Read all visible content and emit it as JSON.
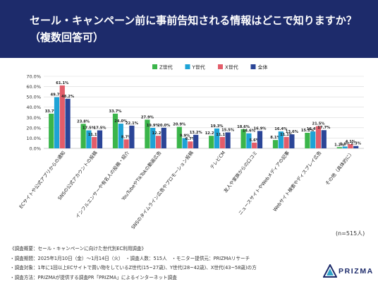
{
  "header": {
    "title_line1": "セール・キャンペーン前に事前告知される情報はどこで知りますか？",
    "title_line2": "（複数回答可）"
  },
  "chart_data": {
    "type": "bar",
    "title": "",
    "xlabel": "",
    "ylabel": "",
    "ylim": [
      0,
      70
    ],
    "yticks": [
      "0.0%",
      "10.0%",
      "20.0%",
      "30.0%",
      "40.0%",
      "50.0%",
      "60.0%",
      "70.0%"
    ],
    "grid": true,
    "legend_position": "top-center",
    "categories": [
      "ECサイトや公式アプリからの通知",
      "SNSの公式アカウントの投稿",
      "インフルエンサーや有名人の投稿・紹介",
      "YouTubeやTikTokの動画広告",
      "SNSのタイムライン広告やプロモーション投稿",
      "テレビCM",
      "友人や家族からの口コミ",
      "ニュースサイトやWebメディアの記事",
      "Webサイト検索やディスプレイ広告",
      "その他（具体的に）"
    ],
    "series": [
      {
        "name": "Z世代",
        "color": "#3bb54a",
        "values": [
          33.7,
          23.8,
          33.7,
          27.9,
          20.9,
          12.2,
          18.6,
          8.1,
          15.1,
          1.2
        ]
      },
      {
        "name": "Y世代",
        "color": "#1ea3d6",
        "values": [
          49.7,
          17.5,
          24.0,
          19.9,
          9.9,
          19.3,
          14.6,
          16.4,
          16.4,
          1.8
        ]
      },
      {
        "name": "X世代",
        "color": "#e35d6a",
        "values": [
          61.1,
          11.1,
          8.7,
          12.2,
          6.7,
          11.1,
          5.6,
          11.1,
          21.5,
          4.1
        ]
      },
      {
        "name": "全体",
        "color": "#2b4597",
        "values": [
          48.2,
          17.5,
          22.1,
          20.0,
          13.2,
          15.5,
          16.9,
          13.6,
          17.7,
          2.3
        ]
      }
    ],
    "value_labels": [
      [
        "33.7%",
        "49.7%",
        "61.1%",
        "48.2%"
      ],
      [
        "23.8%",
        "17.5%",
        "11.1%",
        "17.5%"
      ],
      [
        "33.7%",
        "24.0%",
        "8.7%",
        "22.1%"
      ],
      [
        "27.9%",
        "19.9%",
        "12.2%",
        "20.0%"
      ],
      [
        "20.9%",
        "9.9%",
        "6.7%",
        "13.2%"
      ],
      [
        "12.2%",
        "19.3%",
        "11.1%",
        "15.5%"
      ],
      [
        "18.6%",
        "14.6%",
        "5.6%",
        "16.9%"
      ],
      [
        "8.1%",
        "16.4%",
        "11.1%",
        "13.6%"
      ],
      [
        "15.1%",
        "16.4%",
        "21.5%",
        "17.7%"
      ],
      [
        "1.2%",
        "1.8%",
        "4.1%",
        "2.3%"
      ]
    ]
  },
  "sample_note": "(n=515人)",
  "footer": {
    "lines": [
      "《調査概要：セール・キャンペーンに向けた世代別EC利用調査》",
      "・調査期間：2025年1月10日（金）～1月14日（火）　・調査人数：515人　・モニター提供元：PRIZMAリサーチ",
      "・調査対象：1年に1回以上ECサイトで買い物をしているZ世代(15~27歳)、Y世代(28~42歳)、X世代(43~58歳)の方",
      "・調査方法：PRIZMAが提供する調査PR「PRIZMA」によるインターネット調査"
    ]
  },
  "logo": {
    "text": "PRIZMA",
    "icon": "prizma-triangle-icon",
    "color": "#1d2b6b"
  }
}
